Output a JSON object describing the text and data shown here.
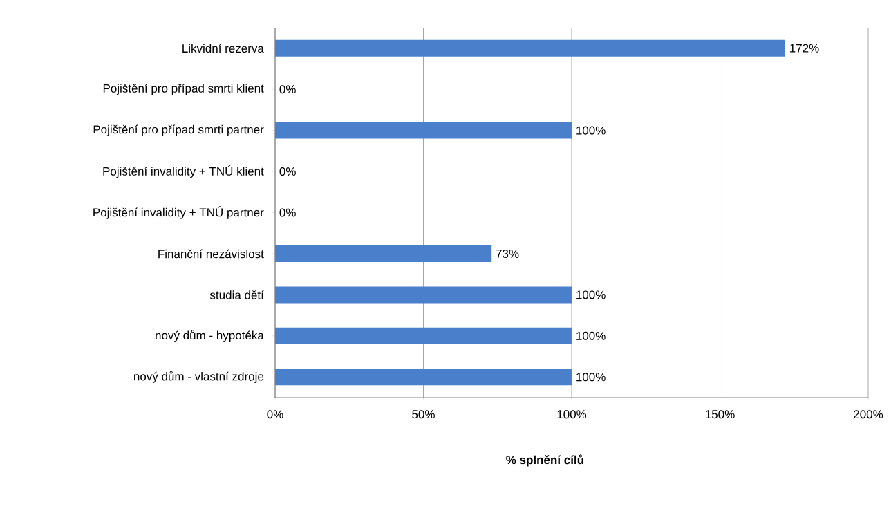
{
  "chart_data": {
    "type": "bar",
    "orientation": "horizontal",
    "xlabel": "% splnění cílů",
    "categories": [
      "Likvidní rezerva",
      "Pojištění pro případ smrti klient",
      "Pojištění pro případ smrti partner",
      "Pojištění invalidity + TNÚ klient",
      "Pojištění invalidity + TNÚ partner",
      "Finanční nezávislost",
      "studia dětí",
      "nový dům - hypotéka",
      "nový dům - vlastní zdroje"
    ],
    "values": [
      172,
      0,
      100,
      0,
      0,
      73,
      100,
      100,
      100
    ],
    "value_labels": [
      "172%",
      "0%",
      "100%",
      "0%",
      "0%",
      "73%",
      "100%",
      "100%",
      "100%"
    ],
    "color": "#4a7fcb",
    "xlim": [
      0,
      200
    ],
    "xticks": [
      {
        "value": 0,
        "label": "0%"
      },
      {
        "value": 50,
        "label": "50%"
      },
      {
        "value": 100,
        "label": "100%"
      },
      {
        "value": 150,
        "label": "150%"
      },
      {
        "value": 200,
        "label": "200%"
      }
    ],
    "grid": "x"
  }
}
